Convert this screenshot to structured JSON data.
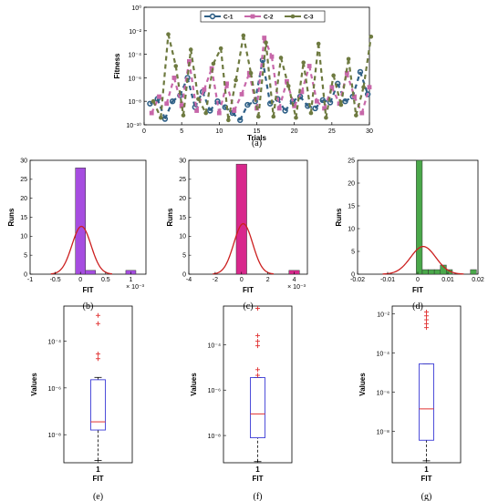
{
  "colors": {
    "c1": "#2e5f86",
    "c2": "#c767a9",
    "c3": "#6e7a40",
    "hist_b": "#a64de0",
    "hist_c": "#d8288c",
    "hist_d": "#4aa84a",
    "fit_curve": "#cc1f1f",
    "box": "#3b3bd6",
    "median": "#e03030",
    "outlier": "#e03030"
  },
  "chart_data": [
    {
      "id": "a",
      "type": "scatter",
      "caption": "(a)",
      "xlabel": "Trials",
      "ylabel": "Fitness",
      "xlim": [
        0,
        30
      ],
      "xticks": [
        0,
        5,
        10,
        15,
        20,
        25,
        30
      ],
      "ylim_log10": [
        -10,
        0
      ],
      "ytick_labels": [
        "10⁰",
        "10⁻²",
        "10⁻⁴",
        "10⁻⁶",
        "10⁻⁸",
        "10⁻¹⁰"
      ],
      "ytick_exponents": [
        0,
        -2,
        -4,
        -6,
        -8,
        -10
      ],
      "x": [
        1,
        2,
        3,
        4,
        5,
        6,
        7,
        8,
        9,
        10,
        11,
        12,
        13,
        14,
        15,
        16,
        17,
        18,
        19,
        20,
        21,
        22,
        23,
        24,
        25,
        26,
        27,
        28,
        29,
        30
      ],
      "series": [
        {
          "name": "C-1",
          "marker": "circle",
          "log10_values": [
            -8.2,
            -7.8,
            -9.5,
            -8.0,
            -7.5,
            -6.0,
            -8.5,
            -7.2,
            -8.8,
            -8.0,
            -8.5,
            -9.0,
            -9.6,
            -8.3,
            -8.0,
            -4.5,
            -8.2,
            -7.8,
            -8.8,
            -8.0,
            -7.6,
            -8.4,
            -8.6,
            -7.9,
            -8.1,
            -6.5,
            -8.0,
            -7.6,
            -5.5,
            -7.4
          ]
        },
        {
          "name": "C-2",
          "marker": "square",
          "log10_values": [
            -9.0,
            -7.6,
            -8.2,
            -6.0,
            -8.4,
            -4.6,
            -8.8,
            -7.0,
            -5.2,
            -9.0,
            -6.5,
            -8.8,
            -7.4,
            -5.6,
            -8.6,
            -2.6,
            -4.2,
            -8.6,
            -6.3,
            -8.4,
            -7.2,
            -5.0,
            -8.0,
            -8.6,
            -6.8,
            -8.2,
            -5.6,
            -7.6,
            -9.0,
            -6.8
          ]
        },
        {
          "name": "C-3",
          "marker": "circle",
          "log10_values": [
            -8.0,
            -9.4,
            -2.3,
            -5.0,
            -9.2,
            -3.6,
            -7.8,
            -9.0,
            -4.8,
            -3.5,
            -9.6,
            -6.2,
            -2.4,
            -5.6,
            -9.3,
            -3.0,
            -9.3,
            -4.3,
            -6.7,
            -9.4,
            -4.7,
            -9.0,
            -3.1,
            -9.4,
            -5.8,
            -8.3,
            -4.4,
            -9.2,
            -6.8,
            -2.5
          ]
        }
      ],
      "legend_position": "top"
    },
    {
      "id": "b",
      "type": "bar",
      "caption": "(b)",
      "xlabel": "FIT",
      "ylabel": "Runs",
      "xlim": [
        -1.0,
        1.3
      ],
      "xticks": [
        -1,
        -0.5,
        0,
        0.5,
        1
      ],
      "xtick_labels": [
        "-1",
        "-0.5",
        "0",
        "0.5",
        "1"
      ],
      "x_multiplier": "× 10⁻³",
      "ylim": [
        0,
        30
      ],
      "yticks": [
        0,
        5,
        10,
        15,
        20,
        25,
        30
      ],
      "bin_edges": [
        -0.1,
        0.1,
        0.3,
        0.5,
        0.7,
        0.9,
        1.1
      ],
      "counts": [
        28,
        1,
        0,
        0,
        0,
        1
      ],
      "normal_fit": {
        "mean": 0.02,
        "sd": 0.19
      }
    },
    {
      "id": "c",
      "type": "bar",
      "caption": "(c)",
      "xlabel": "FIT",
      "ylabel": "Runs",
      "xlim": [
        -4,
        5
      ],
      "xticks": [
        -4,
        -2,
        0,
        2,
        4
      ],
      "xtick_labels": [
        "-4",
        "-2",
        "0",
        "2",
        "4"
      ],
      "x_multiplier": "× 10⁻³",
      "ylim": [
        0,
        30
      ],
      "yticks": [
        0,
        5,
        10,
        15,
        20,
        25,
        30
      ],
      "bin_edges": [
        -0.4,
        0.4,
        1.2,
        2.0,
        2.8,
        3.6,
        4.4
      ],
      "counts": [
        29,
        0,
        0,
        0,
        0,
        1
      ],
      "normal_fit": {
        "mean": 0.13,
        "sd": 0.72
      }
    },
    {
      "id": "d",
      "type": "bar",
      "caption": "(d)",
      "xlabel": "FIT",
      "ylabel": "Runs",
      "xlim": [
        -0.02,
        0.02
      ],
      "xticks": [
        -0.02,
        -0.01,
        0,
        0.01,
        0.02
      ],
      "xtick_labels": [
        "-0.02",
        "-0.01",
        "0",
        "0.01",
        "0.02"
      ],
      "ylim": [
        0,
        25
      ],
      "yticks": [
        0,
        5,
        10,
        15,
        20,
        25
      ],
      "bin_edges": [
        -0.0005,
        0.0015,
        0.0035,
        0.0055,
        0.0075,
        0.0095,
        0.0115,
        0.0135,
        0.0155,
        0.0175,
        0.0195
      ],
      "counts": [
        25,
        1,
        1,
        1,
        2,
        1,
        0,
        0,
        0,
        1
      ],
      "normal_fit": {
        "mean": 0.0018,
        "sd": 0.0042
      }
    },
    {
      "id": "e",
      "type": "box",
      "caption": "(e)",
      "xlabel": "FIT",
      "ylabel": "Values",
      "category": "1",
      "ylim_log10": [
        -9.2,
        -2.5
      ],
      "ytick_exponents": [
        -8,
        -6,
        -4
      ],
      "ytick_labels": [
        "10⁻⁸",
        "10⁻⁶",
        "10⁻⁴"
      ],
      "whisker_low_log10": -9.1,
      "q1_log10": -7.8,
      "median_log10": -7.45,
      "q3_log10": -5.65,
      "whisker_high_log10": -5.55,
      "outliers_log10": [
        -2.9,
        -3.25,
        -4.55,
        -4.75
      ]
    },
    {
      "id": "f",
      "type": "box",
      "caption": "(f)",
      "xlabel": "FIT",
      "ylabel": "Values",
      "category": "1",
      "ylim_log10": [
        -9.2,
        -2.3
      ],
      "ytick_exponents": [
        -8,
        -6,
        -4
      ],
      "ytick_labels": [
        "10⁻⁸",
        "10⁻⁶",
        "10⁻⁴"
      ],
      "whisker_low_log10": -9.15,
      "q1_log10": -8.1,
      "median_log10": -7.05,
      "q3_log10": -5.45,
      "whisker_high_log10": -5.45,
      "outliers_log10": [
        -2.4,
        -3.6,
        -3.85,
        -4.05,
        -5.1,
        -5.35
      ]
    },
    {
      "id": "g",
      "type": "box",
      "caption": "(g)",
      "xlabel": "FIT",
      "ylabel": "Values",
      "category": "1",
      "ylim_log10": [
        -9.6,
        -1.6
      ],
      "ytick_exponents": [
        -8,
        -6,
        -4,
        -2
      ],
      "ytick_labels": [
        "10⁻⁸",
        "10⁻⁶",
        "10⁻⁴",
        "10⁻²"
      ],
      "whisker_low_log10": -9.5,
      "q1_log10": -8.45,
      "median_log10": -6.85,
      "q3_log10": -4.55,
      "whisker_high_log10": -4.55,
      "outliers_log10": [
        -1.9,
        -2.1,
        -2.3,
        -2.5,
        -2.7
      ]
    }
  ]
}
